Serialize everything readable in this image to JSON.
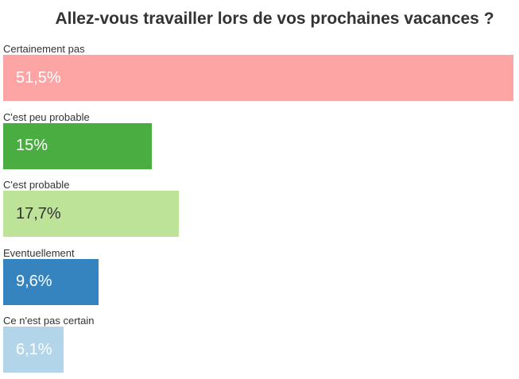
{
  "chart_data": {
    "type": "bar",
    "orientation": "horizontal",
    "title": "Allez-vous travailler lors de vos prochaines vacances ?",
    "categories": [
      "Certainement pas",
      "C'est peu probable",
      "C'est probable",
      "Eventuellement",
      "Ce n'est pas certain"
    ],
    "values": [
      51.5,
      15,
      17.7,
      9.6,
      6.1
    ],
    "value_labels": [
      "51,5%",
      "15%",
      "17,7%",
      "9,6%",
      "6,1%"
    ],
    "unit": "%",
    "colors": [
      "#fda4a4",
      "#4aad42",
      "#bde398",
      "#3584bf",
      "#b3d5ea"
    ],
    "label_colors": [
      "#ffffff",
      "#ffffff",
      "#333333",
      "#ffffff",
      "#ffffff"
    ],
    "xlim": [
      0,
      51.5
    ],
    "grid": false,
    "legend": "none"
  }
}
